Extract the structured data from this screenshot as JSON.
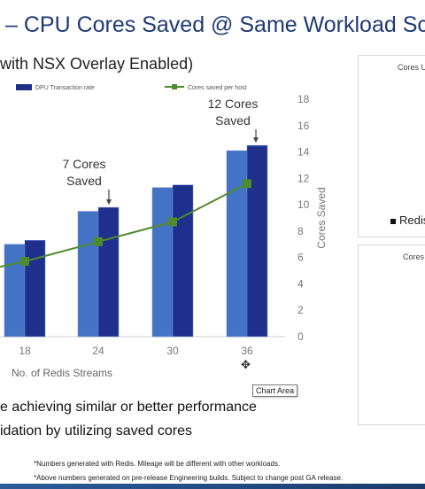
{
  "slide": {
    "title": "– CPU Cores Saved @ Same Workload Sc",
    "subtitle": "with NSX Overlay Enabled)",
    "bullets": [
      "e achieving similar or better performance",
      "idation by utilizing saved cores"
    ],
    "footnotes": [
      "*Numbers generated with Redis. Mileage will be different with other workloads.",
      "*Above numbers generated on pre-release Engineering builds. Subject to change post GA release."
    ]
  },
  "tooltip": "Chart Area",
  "side_panels": [
    {
      "title": "Cores U",
      "legend": "Redis"
    },
    {
      "title": "Cores"
    }
  ],
  "chart_data": {
    "type": "bar",
    "categories": [
      "18",
      "24",
      "30",
      "36"
    ],
    "xlabel": "No. of Redis Streams",
    "ylabel_right": "Cores Saved",
    "ylim_right": [
      0,
      18
    ],
    "yticks_right": [
      "0",
      "2",
      "4",
      "6",
      "8",
      "10",
      "12",
      "14",
      "16",
      "18"
    ],
    "series": [
      {
        "name": "",
        "type": "bar",
        "color": "#4472c4",
        "values": [
          7.0,
          9.5,
          11.3,
          14.1
        ]
      },
      {
        "name": "DPU Transaction rate",
        "type": "bar",
        "color": "#1f2f8c",
        "values": [
          7.3,
          9.8,
          11.5,
          14.5
        ]
      },
      {
        "name": "Cores saved per host",
        "type": "line",
        "color": "#4e8a2e",
        "values": [
          5.7,
          7.2,
          8.7,
          11.6
        ]
      }
    ],
    "annotations": [
      {
        "text": [
          "7 Cores",
          "Saved"
        ],
        "category": "24"
      },
      {
        "text": [
          "12 Cores",
          "Saved"
        ],
        "category": "36"
      }
    ]
  }
}
